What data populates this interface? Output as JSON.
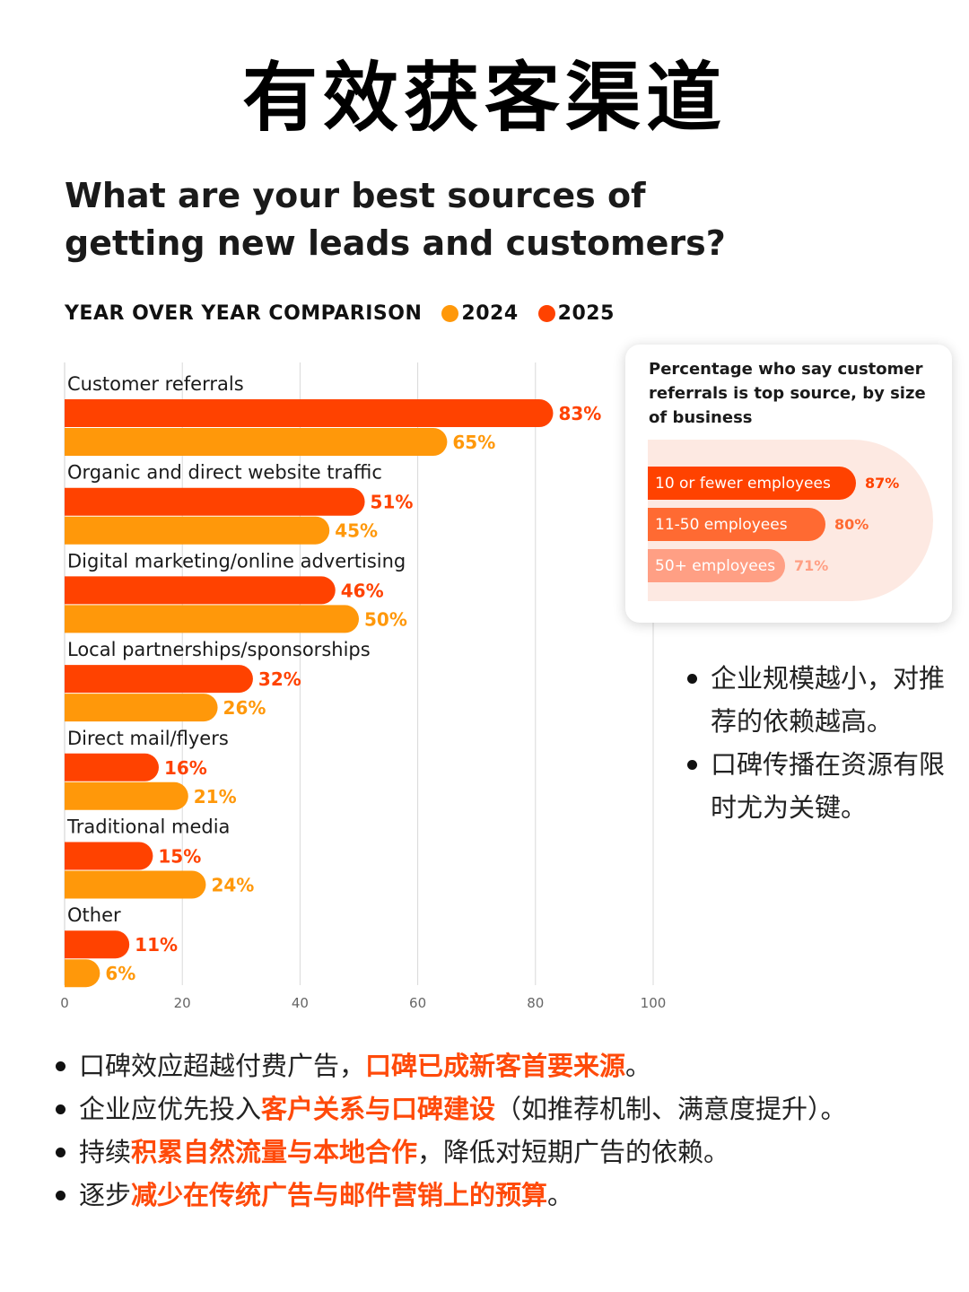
{
  "page_title": "有效获客渠道",
  "colors": {
    "y2024": "#ff980a",
    "y2025": "#ff4200",
    "highlight": "#ff4a0a",
    "inset1": "#ff4200",
    "inset2": "#ff6a32",
    "inset3": "#ff9f84"
  },
  "chart_data": {
    "type": "bar",
    "orientation": "horizontal",
    "title": "What are your best sources of getting new leads and customers?",
    "subtitle": "YEAR OVER YEAR COMPARISON",
    "legend": [
      "2024",
      "2025"
    ],
    "categories": [
      "Customer referrals",
      "Organic and direct website traffic",
      "Digital marketing/online advertising",
      "Local partnerships/sponsorships",
      "Direct mail/flyers",
      "Traditional media",
      "Other"
    ],
    "series": [
      {
        "name": "2025",
        "values": [
          83,
          51,
          46,
          32,
          16,
          15,
          11
        ],
        "labels": [
          "83%",
          "51%",
          "46%",
          "32%",
          "16%",
          "15%",
          "11%"
        ]
      },
      {
        "name": "2024",
        "values": [
          65,
          45,
          50,
          26,
          21,
          24,
          6
        ],
        "labels": [
          "65%",
          "45%",
          "50%",
          "26%",
          "21%",
          "24%",
          "6%"
        ]
      }
    ],
    "xlim": [
      0,
      100
    ],
    "xticks": [
      "0",
      "20",
      "40",
      "60",
      "80",
      "100"
    ],
    "grid": true
  },
  "inset": {
    "title": "Percentage who say customer referrals is top source, by size of business",
    "bars": [
      {
        "label": "10 or fewer employees",
        "value": 87,
        "value_label": "87%"
      },
      {
        "label": "11-50 employees",
        "value": 80,
        "value_label": "80%"
      },
      {
        "label": "50+ employees",
        "value": 71,
        "value_label": "71%"
      }
    ]
  },
  "side_notes": [
    "企业规模越小，对推荐的依赖越高。",
    "口碑传播在资源有限时尤为关键。"
  ],
  "bottom_notes": [
    {
      "before": "口碑效应超越付费广告，",
      "highlight": "口碑已成新客首要来源",
      "after": "。"
    },
    {
      "before": "企业应优先投入",
      "highlight": "客户关系与口碑建设",
      "after": "（如推荐机制、满意度提升）。"
    },
    {
      "before": "持续",
      "highlight": "积累自然流量与本地合作",
      "after": "，降低对短期广告的依赖。"
    },
    {
      "before": "逐步",
      "highlight": "减少在传统广告与邮件营销上的预算",
      "after": "。"
    }
  ]
}
